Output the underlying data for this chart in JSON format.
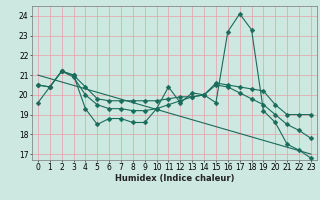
{
  "xlabel": "Humidex (Indice chaleur)",
  "bg_color": "#cce8e0",
  "line_color": "#1a6b5a",
  "grid_color": "#e8a0a8",
  "xlim": [
    -0.5,
    23.5
  ],
  "ylim": [
    16.7,
    24.5
  ],
  "yticks": [
    17,
    18,
    19,
    20,
    21,
    22,
    23,
    24
  ],
  "xticks": [
    0,
    1,
    2,
    3,
    4,
    5,
    6,
    7,
    8,
    9,
    10,
    11,
    12,
    13,
    14,
    15,
    16,
    17,
    18,
    19,
    20,
    21,
    22,
    23
  ],
  "line1_x": [
    0,
    1,
    2,
    3,
    4,
    5,
    6,
    7,
    8,
    9,
    10,
    11,
    12,
    13,
    14,
    15,
    16,
    17,
    18,
    19,
    20,
    21,
    22,
    23
  ],
  "line1_y": [
    19.6,
    20.4,
    21.2,
    21.0,
    19.3,
    18.5,
    18.8,
    18.8,
    18.6,
    18.6,
    19.3,
    20.4,
    19.6,
    20.1,
    20.0,
    19.6,
    23.2,
    24.1,
    23.3,
    19.2,
    18.6,
    17.5,
    17.2,
    16.8
  ],
  "line2_x": [
    0,
    1,
    2,
    3,
    4,
    5,
    6,
    7,
    8,
    9,
    10,
    11,
    12,
    13,
    14,
    15,
    16,
    17,
    18,
    19,
    20,
    21,
    22,
    23
  ],
  "line2_y": [
    20.5,
    20.4,
    21.2,
    21.0,
    20.4,
    19.8,
    19.7,
    19.7,
    19.7,
    19.7,
    19.7,
    19.8,
    19.9,
    19.9,
    20.0,
    20.6,
    20.5,
    20.4,
    20.3,
    20.2,
    19.5,
    19.0,
    19.0,
    19.0
  ],
  "line3_x": [
    0,
    1,
    2,
    3,
    4,
    5,
    6,
    7,
    8,
    9,
    10,
    11,
    12,
    13,
    14,
    15,
    16,
    17,
    18,
    19,
    20,
    21,
    22,
    23
  ],
  "line3_y": [
    20.5,
    20.4,
    21.2,
    20.9,
    20.0,
    19.5,
    19.3,
    19.3,
    19.2,
    19.2,
    19.3,
    19.5,
    19.7,
    19.9,
    20.0,
    20.5,
    20.4,
    20.1,
    19.8,
    19.5,
    19.0,
    18.5,
    18.2,
    17.8
  ],
  "line4_x": [
    0,
    23
  ],
  "line4_y": [
    21.0,
    17.0
  ]
}
